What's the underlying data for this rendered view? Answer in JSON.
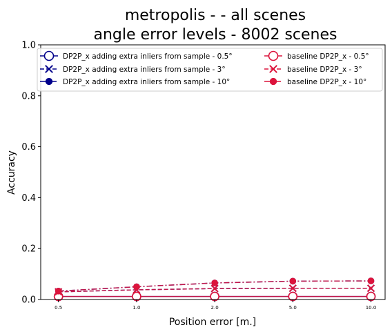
{
  "chart_data": {
    "type": "line",
    "title_line1": "metropolis -  - all scenes",
    "title_line2": "angle error levels - 8002 scenes",
    "xlabel": "Position error [m.]",
    "ylabel": "Accuracy",
    "categories": [
      "0.5",
      "1.0",
      "2.0",
      "5.0",
      "10.0"
    ],
    "ylim": [
      0,
      1.0
    ],
    "yticks": [
      "0.0",
      "0.2",
      "0.4",
      "0.6",
      "0.8",
      "1.0"
    ],
    "grid": false,
    "legend_position": "top",
    "series": [
      {
        "name": "DP2P_x adding extra inliers from sample - 0.5°",
        "color": "#00008b",
        "linestyle": "solid",
        "marker": "open-circle",
        "values": [
          0.012,
          0.012,
          0.012,
          0.012,
          0.012
        ]
      },
      {
        "name": "DP2P_x adding extra inliers from sample - 3°",
        "color": "#00008b",
        "linestyle": "dashed",
        "marker": "x",
        "values": [
          0.03,
          0.038,
          0.043,
          0.044,
          0.044
        ]
      },
      {
        "name": "DP2P_x adding extra inliers from sample - 10°",
        "color": "#00008b",
        "linestyle": "dashdot",
        "marker": "filled-circle",
        "values": [
          0.033,
          0.05,
          0.065,
          0.072,
          0.073
        ]
      },
      {
        "name": "baseline DP2P_x - 0.5°",
        "color": "#dc143c",
        "linestyle": "solid",
        "marker": "open-circle",
        "values": [
          0.012,
          0.012,
          0.012,
          0.012,
          0.012
        ]
      },
      {
        "name": "baseline DP2P_x - 3°",
        "color": "#dc143c",
        "linestyle": "dashed",
        "marker": "x",
        "values": [
          0.03,
          0.038,
          0.043,
          0.044,
          0.044
        ]
      },
      {
        "name": "baseline DP2P_x - 10°",
        "color": "#dc143c",
        "linestyle": "dashdot",
        "marker": "filled-circle",
        "values": [
          0.033,
          0.05,
          0.065,
          0.072,
          0.073
        ]
      }
    ]
  }
}
